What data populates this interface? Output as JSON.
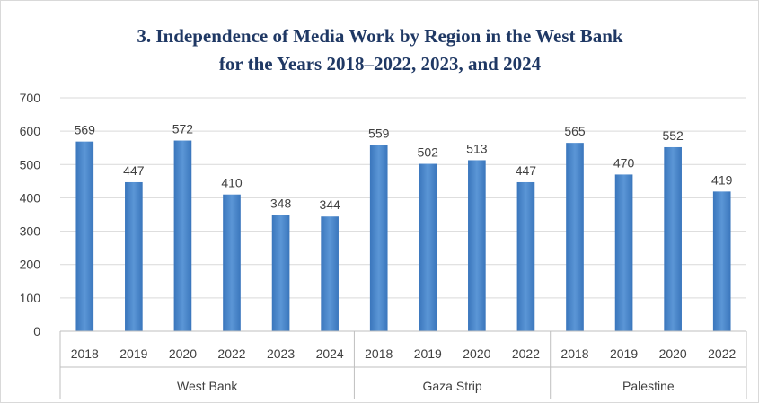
{
  "chart_data": {
    "type": "bar",
    "title_line1": "3. Independence of Media Work by Region in the West Bank",
    "title_line2": "for the Years 2018–2022, 2023, and 2024",
    "xlabel": "",
    "ylabel": "",
    "ylim": [
      0,
      700
    ],
    "yticks": [
      "0",
      "100",
      "200",
      "300",
      "400",
      "500",
      "600",
      "700"
    ],
    "grid": true,
    "legend": "none",
    "bar_color": "#4a86c8",
    "groups": [
      {
        "name": "West Bank",
        "categories": [
          "2018",
          "2019",
          "2020",
          "2022",
          "2023",
          "2024"
        ],
        "values": [
          569,
          447,
          572,
          410,
          348,
          344
        ]
      },
      {
        "name": "Gaza Strip",
        "categories": [
          "2018",
          "2019",
          "2020",
          "2022"
        ],
        "values": [
          559,
          502,
          513,
          447
        ]
      },
      {
        "name": "Palestine",
        "categories": [
          "2018",
          "2019",
          "2020",
          "2022"
        ],
        "values": [
          565,
          470,
          552,
          419
        ]
      }
    ]
  }
}
